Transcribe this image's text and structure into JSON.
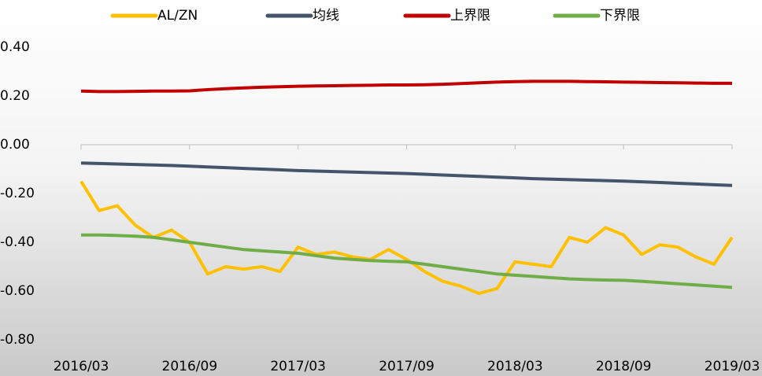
{
  "chart_data": {
    "type": "line",
    "categories": [
      "2016/03",
      null,
      null,
      null,
      null,
      null,
      "2016/09",
      null,
      null,
      null,
      null,
      null,
      "2017/03",
      null,
      null,
      null,
      null,
      null,
      "2017/09",
      null,
      null,
      null,
      null,
      null,
      "2018/03",
      null,
      null,
      null,
      null,
      null,
      "2018/09",
      null,
      null,
      null,
      null,
      null,
      "2019/03"
    ],
    "series": [
      {
        "name": "AL/ZN",
        "color": "#ffc000",
        "values": [
          -0.15,
          -0.27,
          -0.25,
          -0.33,
          -0.38,
          -0.35,
          -0.4,
          -0.53,
          -0.5,
          -0.51,
          -0.5,
          -0.52,
          -0.42,
          -0.45,
          -0.44,
          -0.46,
          -0.47,
          -0.43,
          -0.47,
          -0.52,
          -0.56,
          -0.58,
          -0.61,
          -0.59,
          -0.48,
          -0.49,
          -0.5,
          -0.38,
          -0.4,
          -0.34,
          -0.37,
          -0.45,
          -0.41,
          -0.42,
          -0.46,
          -0.49,
          -0.38
        ]
      },
      {
        "name": "均线",
        "color": "#44546a",
        "values": [
          -0.075,
          -0.077,
          -0.079,
          -0.081,
          -0.083,
          -0.085,
          -0.088,
          -0.091,
          -0.094,
          -0.097,
          -0.1,
          -0.103,
          -0.106,
          -0.108,
          -0.11,
          -0.112,
          -0.114,
          -0.116,
          -0.118,
          -0.121,
          -0.124,
          -0.127,
          -0.13,
          -0.133,
          -0.136,
          -0.139,
          -0.141,
          -0.143,
          -0.145,
          -0.147,
          -0.149,
          -0.152,
          -0.155,
          -0.158,
          -0.161,
          -0.164,
          -0.167
        ]
      },
      {
        "name": "上界限",
        "color": "#c00000",
        "values": [
          0.22,
          0.218,
          0.218,
          0.219,
          0.22,
          0.22,
          0.221,
          0.226,
          0.23,
          0.233,
          0.236,
          0.238,
          0.24,
          0.241,
          0.242,
          0.243,
          0.244,
          0.245,
          0.245,
          0.246,
          0.248,
          0.251,
          0.254,
          0.257,
          0.259,
          0.26,
          0.26,
          0.26,
          0.259,
          0.258,
          0.257,
          0.256,
          0.255,
          0.254,
          0.253,
          0.252,
          0.252
        ]
      },
      {
        "name": "下界限",
        "color": "#70ad47",
        "values": [
          -0.37,
          -0.37,
          -0.372,
          -0.375,
          -0.38,
          -0.39,
          -0.4,
          -0.41,
          -0.42,
          -0.43,
          -0.435,
          -0.44,
          -0.445,
          -0.455,
          -0.465,
          -0.47,
          -0.475,
          -0.478,
          -0.48,
          -0.49,
          -0.5,
          -0.51,
          -0.52,
          -0.53,
          -0.535,
          -0.54,
          -0.545,
          -0.55,
          -0.553,
          -0.555,
          -0.556,
          -0.56,
          -0.565,
          -0.57,
          -0.575,
          -0.58,
          -0.585
        ]
      }
    ],
    "ylim": [
      -0.8,
      0.4
    ],
    "yticks": [
      {
        "value": -0.8,
        "label": "-0.80"
      },
      {
        "value": -0.6,
        "label": "-0.60"
      },
      {
        "value": -0.4,
        "label": "-0.40"
      },
      {
        "value": -0.2,
        "label": "-0.20"
      },
      {
        "value": 0,
        "label": "0.00"
      },
      {
        "value": 0.2,
        "label": "0.20"
      },
      {
        "value": 0.4,
        "label": "0.40"
      }
    ],
    "grid": false,
    "legend": "top"
  }
}
